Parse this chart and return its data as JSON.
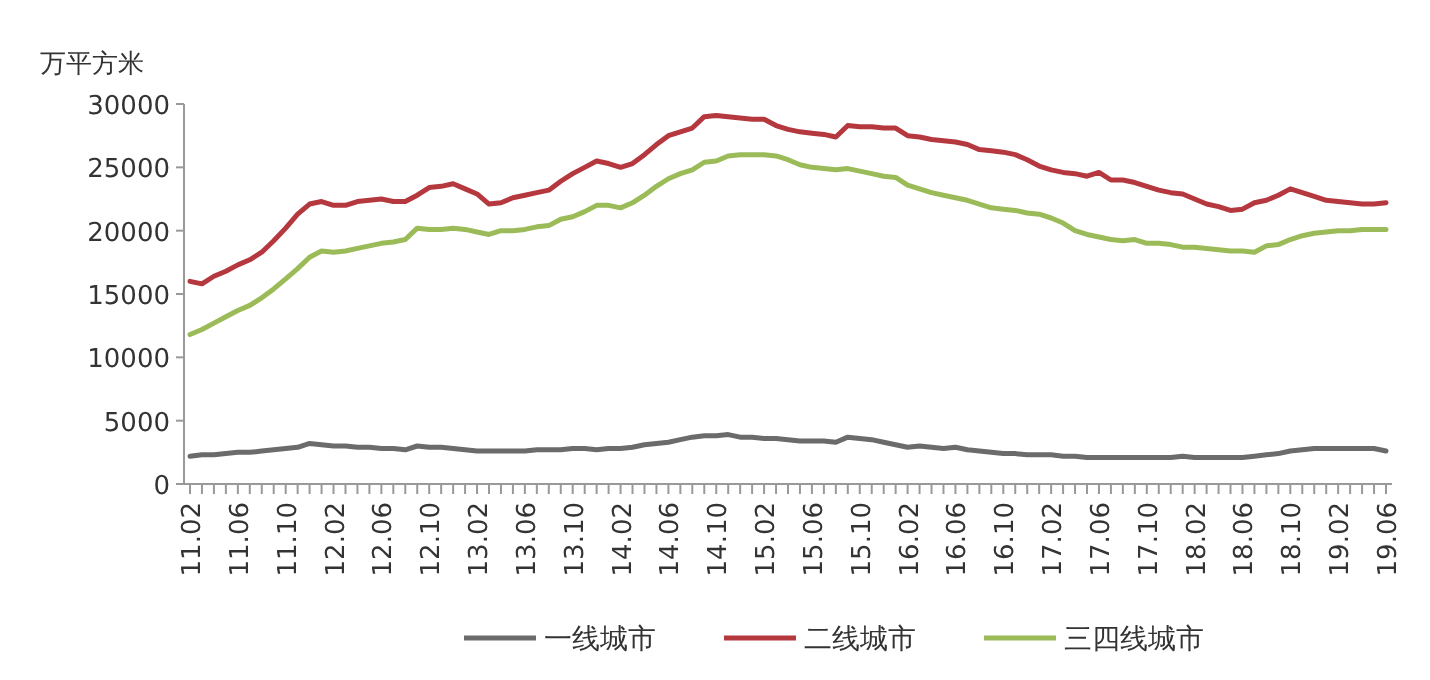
{
  "chart_data": {
    "type": "line",
    "ylabel": "万平方米",
    "ylim": [
      0,
      30000
    ],
    "yticks": [
      0,
      5000,
      10000,
      15000,
      20000,
      25000,
      30000
    ],
    "legend": "bottom",
    "line_style": "solid",
    "categories": [
      "11.02",
      null,
      null,
      null,
      "11.06",
      null,
      null,
      null,
      "11.10",
      null,
      null,
      null,
      "12.02",
      null,
      null,
      null,
      "12.06",
      null,
      null,
      null,
      "12.10",
      null,
      null,
      null,
      "13.02",
      null,
      null,
      null,
      "13.06",
      null,
      null,
      null,
      "13.10",
      null,
      null,
      null,
      "14.02",
      null,
      null,
      null,
      "14.06",
      null,
      null,
      null,
      "14.10",
      null,
      null,
      null,
      "15.02",
      null,
      null,
      null,
      "15.06",
      null,
      null,
      null,
      "15.10",
      null,
      null,
      null,
      "16.02",
      null,
      null,
      null,
      "16.06",
      null,
      null,
      null,
      "16.10",
      null,
      null,
      null,
      "17.02",
      null,
      null,
      null,
      "17.06",
      null,
      null,
      null,
      "17.10",
      null,
      null,
      null,
      "18.02",
      null,
      null,
      null,
      "18.06",
      null,
      null,
      null,
      "18.10",
      null,
      null,
      null,
      "19.02",
      null,
      null,
      null,
      "19.06"
    ],
    "series": [
      {
        "name": "一线城市",
        "color": "#6b6b6b",
        "values": [
          2200,
          2300,
          2300,
          2400,
          2500,
          2500,
          2600,
          2700,
          2800,
          2900,
          3200,
          3100,
          3000,
          3000,
          2900,
          2900,
          2800,
          2800,
          2700,
          3000,
          2900,
          2900,
          2800,
          2700,
          2600,
          2600,
          2600,
          2600,
          2600,
          2700,
          2700,
          2700,
          2800,
          2800,
          2700,
          2800,
          2800,
          2900,
          3100,
          3200,
          3300,
          3500,
          3700,
          3800,
          3800,
          3900,
          3700,
          3700,
          3600,
          3600,
          3500,
          3400,
          3400,
          3400,
          3300,
          3700,
          3600,
          3500,
          3300,
          3100,
          2900,
          3000,
          2900,
          2800,
          2900,
          2700,
          2600,
          2500,
          2400,
          2400,
          2300,
          2300,
          2300,
          2200,
          2200,
          2100,
          2100,
          2100,
          2100,
          2100,
          2100,
          2100,
          2100,
          2200,
          2100,
          2100,
          2100,
          2100,
          2100,
          2200,
          2300,
          2400,
          2600,
          2700,
          2800,
          2800,
          2800,
          2800,
          2800,
          2800,
          2600
        ]
      },
      {
        "name": "二线城市",
        "color": "#b5383f",
        "values": [
          16000,
          15800,
          16400,
          16800,
          17300,
          17700,
          18300,
          19200,
          20200,
          21300,
          22100,
          22300,
          22000,
          22000,
          22300,
          22400,
          22500,
          22300,
          22300,
          22800,
          23400,
          23500,
          23700,
          23300,
          22900,
          22100,
          22200,
          22600,
          22800,
          23000,
          23200,
          23900,
          24500,
          25000,
          25500,
          25300,
          25000,
          25300,
          26000,
          26800,
          27500,
          27800,
          28100,
          29000,
          29100,
          29000,
          28900,
          28800,
          28800,
          28300,
          28000,
          27800,
          27700,
          27600,
          27400,
          28300,
          28200,
          28200,
          28100,
          28100,
          27500,
          27400,
          27200,
          27100,
          27000,
          26800,
          26400,
          26300,
          26200,
          26000,
          25600,
          25100,
          24800,
          24600,
          24500,
          24300,
          24600,
          24000,
          24000,
          23800,
          23500,
          23200,
          23000,
          22900,
          22500,
          22100,
          21900,
          21600,
          21700,
          22200,
          22400,
          22800,
          23300,
          23000,
          22700,
          22400,
          22300,
          22200,
          22100,
          22100,
          22200
        ]
      },
      {
        "name": "三四线城市",
        "color": "#9bbb59",
        "values": [
          11800,
          12200,
          12700,
          13200,
          13700,
          14100,
          14700,
          15400,
          16200,
          17000,
          17900,
          18400,
          18300,
          18400,
          18600,
          18800,
          19000,
          19100,
          19300,
          20200,
          20100,
          20100,
          20200,
          20100,
          19900,
          19700,
          20000,
          20000,
          20100,
          20300,
          20400,
          20900,
          21100,
          21500,
          22000,
          22000,
          21800,
          22200,
          22800,
          23500,
          24100,
          24500,
          24800,
          25400,
          25500,
          25900,
          26000,
          26000,
          26000,
          25900,
          25600,
          25200,
          25000,
          24900,
          24800,
          24900,
          24700,
          24500,
          24300,
          24200,
          23600,
          23300,
          23000,
          22800,
          22600,
          22400,
          22100,
          21800,
          21700,
          21600,
          21400,
          21300,
          21000,
          20600,
          20000,
          19700,
          19500,
          19300,
          19200,
          19300,
          19000,
          19000,
          18900,
          18700,
          18700,
          18600,
          18500,
          18400,
          18400,
          18300,
          18800,
          18900,
          19300,
          19600,
          19800,
          19900,
          20000,
          20000,
          20100,
          20100,
          20100
        ]
      }
    ]
  }
}
